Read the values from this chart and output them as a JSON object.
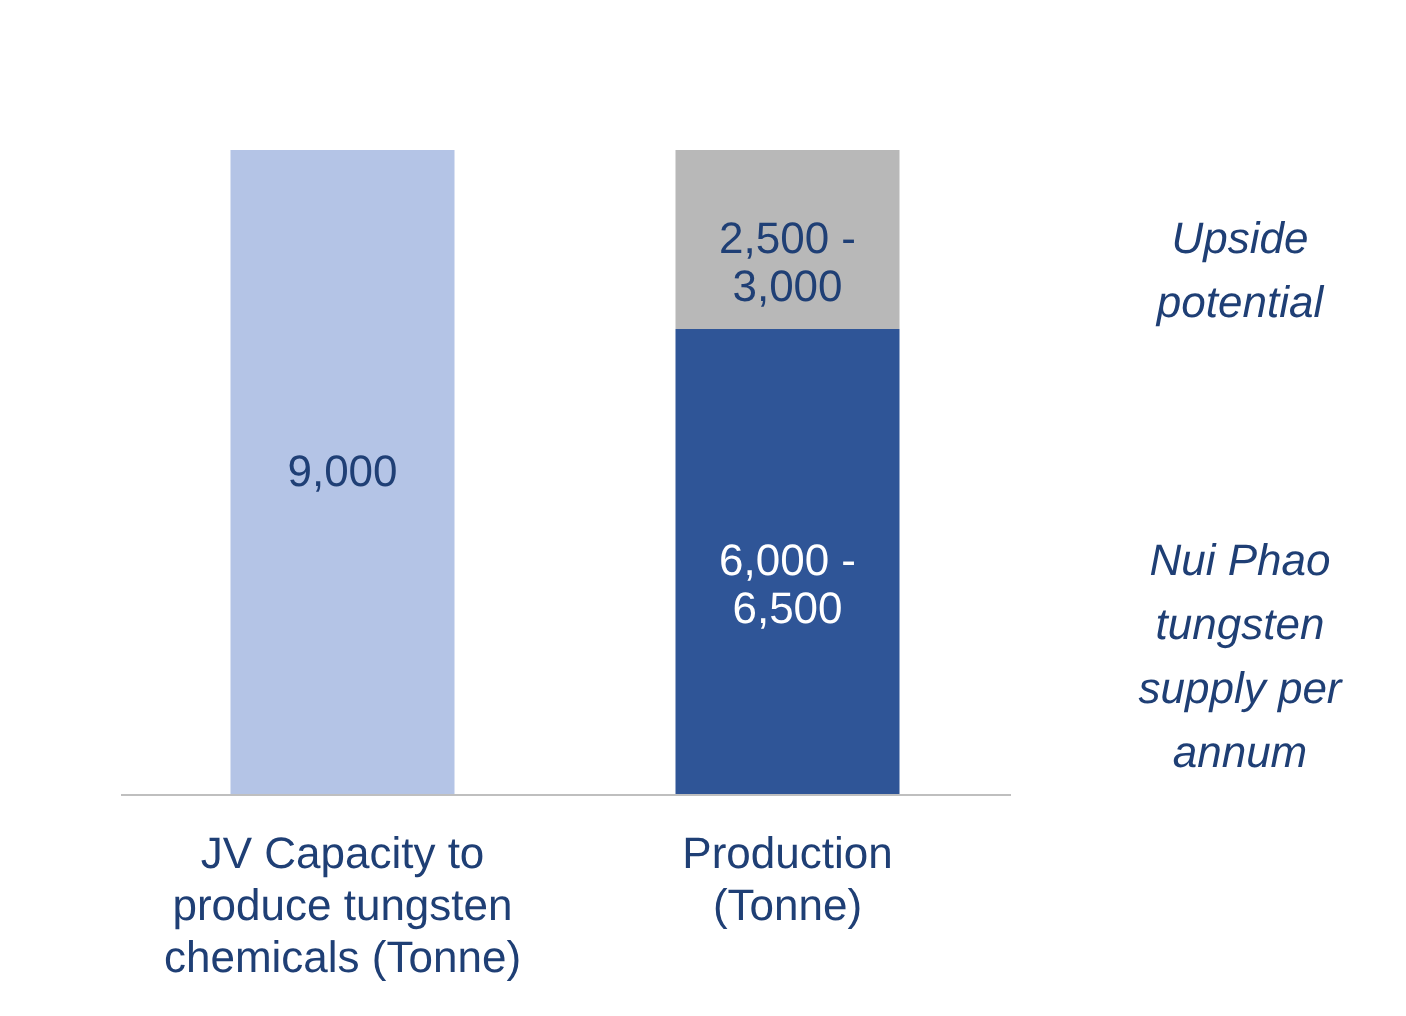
{
  "chart_data": {
    "type": "bar",
    "stacked": true,
    "categories": [
      "JV Capacity to produce tungsten chemicals (Tonne)",
      "Production (Tonne)"
    ],
    "series": [
      {
        "colors": [
          "#b4c4e6",
          "#2f5597"
        ],
        "values": [
          9000,
          6500
        ],
        "value_labels": [
          "9,000",
          null
        ]
      },
      {
        "color": "#b8b8b8",
        "values": [
          null,
          2500
        ]
      }
    ],
    "annotations": [
      "6,000 - 6,500",
      "2,500 - 3,000",
      "Upside potential",
      "Nui Phao tungsten supply per annum"
    ]
  }
}
